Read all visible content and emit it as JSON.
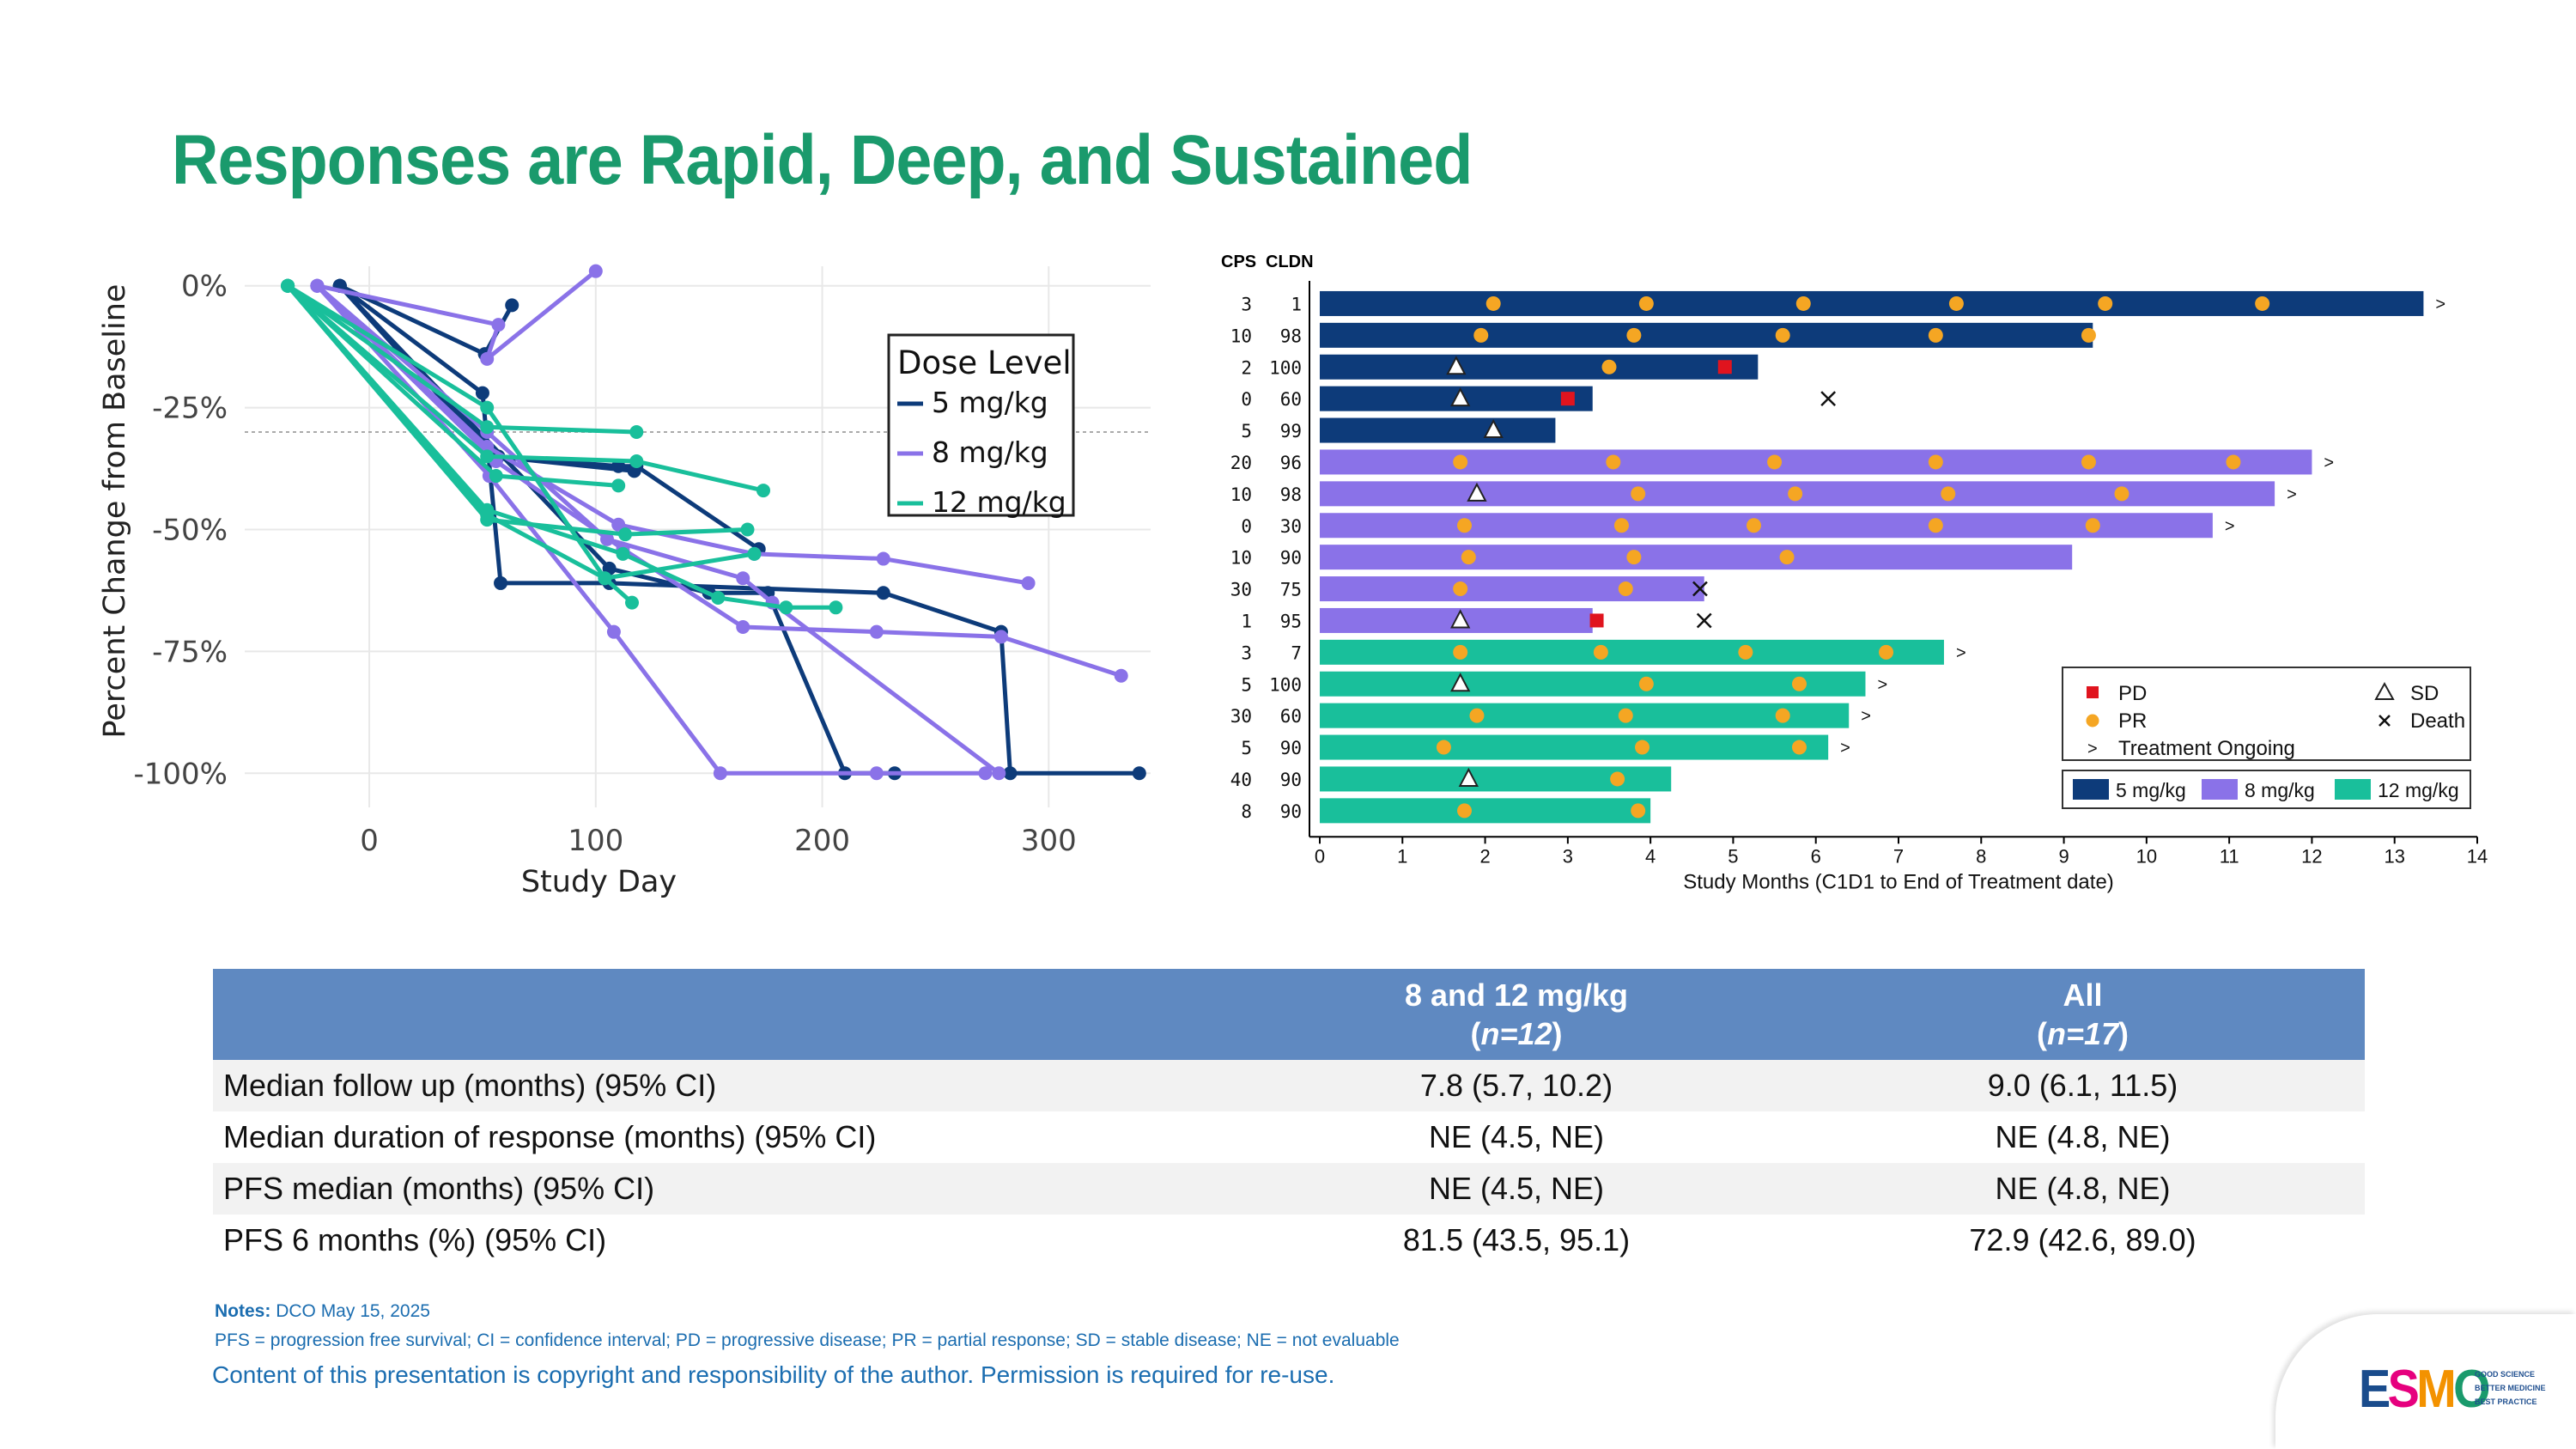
{
  "title": "Responses are Rapid, Deep, and Sustained",
  "chart_data": [
    {
      "type": "line",
      "name": "spider-plot",
      "xlabel": "Study Day",
      "ylabel": "Percent Change from Baseline",
      "xlim": [
        -55,
        345
      ],
      "ylim": [
        -107,
        4
      ],
      "xticks": [
        0,
        100,
        200,
        300
      ],
      "xtick_labels": [
        "0",
        "100",
        "200",
        "300"
      ],
      "yticks": [
        0,
        -25,
        -50,
        -75,
        -100
      ],
      "ytick_labels": [
        "0%",
        "-25%",
        "-50%",
        "-75%",
        "-100%"
      ],
      "reference_line": -30,
      "grid": true,
      "legend": {
        "title": "Dose Level",
        "position": "top-right",
        "entries": [
          {
            "label": "5 mg/kg",
            "color": "#0d3b7a"
          },
          {
            "label": "8 mg/kg",
            "color": "#8a72e8"
          },
          {
            "label": "12 mg/kg",
            "color": "#19bf9b"
          }
        ]
      },
      "series": [
        {
          "dose": "5 mg/kg",
          "points": [
            [
              -13,
              0
            ],
            [
              51,
              -14
            ],
            [
              63,
              -4
            ]
          ]
        },
        {
          "dose": "5 mg/kg",
          "points": [
            [
              -13,
              0
            ],
            [
              50,
              -22
            ],
            [
              58,
              -61
            ],
            [
              106,
              -61
            ],
            [
              227,
              -63
            ],
            [
              279,
              -71
            ],
            [
              283,
              -100
            ],
            [
              340,
              -100
            ]
          ]
        },
        {
          "dose": "5 mg/kg",
          "points": [
            [
              -13,
              0
            ],
            [
              55,
              -35
            ],
            [
              117,
              -38
            ]
          ]
        },
        {
          "dose": "5 mg/kg",
          "points": [
            [
              -13,
              0
            ],
            [
              106,
              -58
            ],
            [
              150,
              -63
            ],
            [
              176,
              -63
            ],
            [
              210,
              -100
            ],
            [
              232,
              -100
            ]
          ]
        },
        {
          "dose": "5 mg/kg",
          "points": [
            [
              -13,
              0
            ],
            [
              57,
              -35
            ],
            [
              110,
              -37
            ],
            [
              118,
              -37
            ],
            [
              172,
              -54
            ]
          ]
        },
        {
          "dose": "8 mg/kg",
          "points": [
            [
              -23,
              0
            ],
            [
              57,
              -8
            ],
            [
              52,
              -15
            ],
            [
              100,
              3
            ]
          ]
        },
        {
          "dose": "8 mg/kg",
          "points": [
            [
              -23,
              0
            ],
            [
              52,
              -33
            ],
            [
              110,
              -49
            ],
            [
              170,
              -55
            ],
            [
              227,
              -56
            ],
            [
              291,
              -61
            ]
          ]
        },
        {
          "dose": "8 mg/kg",
          "points": [
            [
              -23,
              0
            ],
            [
              53,
              -39
            ],
            [
              108,
              -71
            ],
            [
              155,
              -100
            ],
            [
              224,
              -100
            ],
            [
              272,
              -100
            ]
          ]
        },
        {
          "dose": "8 mg/kg",
          "points": [
            [
              -23,
              0
            ],
            [
              56,
              -36
            ],
            [
              112,
              -54
            ],
            [
              165,
              -70
            ],
            [
              224,
              -71
            ],
            [
              279,
              -72
            ],
            [
              332,
              -80
            ]
          ]
        },
        {
          "dose": "8 mg/kg",
          "points": [
            [
              -23,
              0
            ],
            [
              52,
              -30
            ],
            [
              105,
              -52
            ],
            [
              165,
              -60
            ],
            [
              178,
              -65
            ],
            [
              278,
              -100
            ]
          ]
        },
        {
          "dose": "12 mg/kg",
          "points": [
            [
              -36,
              0
            ],
            [
              52,
              -29
            ],
            [
              118,
              -30
            ]
          ]
        },
        {
          "dose": "12 mg/kg",
          "points": [
            [
              -36,
              0
            ],
            [
              52,
              -46
            ],
            [
              112,
              -55
            ],
            [
              154,
              -64
            ],
            [
              184,
              -66
            ],
            [
              206,
              -66
            ]
          ]
        },
        {
          "dose": "12 mg/kg",
          "points": [
            [
              -36,
              0
            ],
            [
              52,
              -35
            ],
            [
              118,
              -36
            ],
            [
              174,
              -42
            ]
          ]
        },
        {
          "dose": "12 mg/kg",
          "points": [
            [
              -36,
              0
            ],
            [
              52,
              -48
            ],
            [
              113,
              -51
            ],
            [
              167,
              -50
            ]
          ]
        },
        {
          "dose": "12 mg/kg",
          "points": [
            [
              -36,
              0
            ],
            [
              56,
              -39
            ],
            [
              110,
              -41
            ]
          ]
        },
        {
          "dose": "12 mg/kg",
          "points": [
            [
              -36,
              0
            ],
            [
              52,
              -25
            ],
            [
              104,
              -60
            ],
            [
              116,
              -65
            ]
          ]
        },
        {
          "dose": "12 mg/kg",
          "points": [
            [
              -36,
              0
            ],
            [
              52,
              -47
            ],
            [
              104,
              -60
            ],
            [
              170,
              -55
            ]
          ]
        }
      ]
    },
    {
      "type": "swimmer",
      "name": "swimmer-plot",
      "xlabel": "Study Months (C1D1 to End of Treatment date)",
      "xlim": [
        0,
        14
      ],
      "xticks": [
        0,
        1,
        2,
        3,
        4,
        5,
        6,
        7,
        8,
        9,
        10,
        11,
        12,
        13,
        14
      ],
      "xtick_labels": [
        "0",
        "1",
        "2",
        "3",
        "4",
        "5",
        "6",
        "7",
        "8",
        "9",
        "10",
        "11",
        "12",
        "13",
        "14"
      ],
      "column_headers": [
        "CPS",
        "CLDN"
      ],
      "legend_markers": [
        {
          "label": "PD",
          "marker": "square",
          "color": "#e0141e"
        },
        {
          "label": "SD",
          "marker": "triangle",
          "color": "#ffffff"
        },
        {
          "label": "PR",
          "marker": "circle",
          "color": "#f5a623"
        },
        {
          "label": "Death",
          "marker": "x",
          "color": "#000000"
        },
        {
          "label": "Treatment Ongoing",
          "marker": ">",
          "color": "#000000"
        }
      ],
      "legend_doses": [
        {
          "label": "5 mg/kg",
          "color": "#0d3b7a"
        },
        {
          "label": "8 mg/kg",
          "color": "#8a72e8"
        },
        {
          "label": "12 mg/kg",
          "color": "#19bf9b"
        }
      ],
      "patients": [
        {
          "cps": "3",
          "cldn": "1",
          "dose": "5 mg/kg",
          "end": 13.35,
          "pr": [
            2.1,
            3.95,
            5.85,
            7.7,
            9.5,
            11.4
          ],
          "sd": [],
          "pd": null,
          "death": null,
          "ongoing": true
        },
        {
          "cps": "10",
          "cldn": "98",
          "dose": "5 mg/kg",
          "end": 9.35,
          "pr": [
            1.95,
            3.8,
            5.6,
            7.45,
            9.3
          ],
          "sd": [],
          "pd": null,
          "death": null,
          "ongoing": false
        },
        {
          "cps": "2",
          "cldn": "100",
          "dose": "5 mg/kg",
          "end": 5.3,
          "pr": [
            3.5
          ],
          "sd": [
            1.65
          ],
          "pd": 4.9,
          "death": null,
          "ongoing": false
        },
        {
          "cps": "0",
          "cldn": "60",
          "dose": "5 mg/kg",
          "end": 3.3,
          "pr": [],
          "sd": [
            1.7
          ],
          "pd": 3.0,
          "death": 6.15,
          "ongoing": false
        },
        {
          "cps": "5",
          "cldn": "99",
          "dose": "5 mg/kg",
          "end": 2.85,
          "pr": [],
          "sd": [
            2.1
          ],
          "pd": null,
          "death": null,
          "ongoing": false
        },
        {
          "cps": "20",
          "cldn": "96",
          "dose": "8 mg/kg",
          "end": 12.0,
          "pr": [
            1.7,
            3.55,
            5.5,
            7.45,
            9.3,
            11.05
          ],
          "sd": [],
          "pd": null,
          "death": null,
          "ongoing": true
        },
        {
          "cps": "10",
          "cldn": "98",
          "dose": "8 mg/kg",
          "end": 11.55,
          "pr": [
            3.85,
            5.75,
            7.6,
            9.7
          ],
          "sd": [
            1.9
          ],
          "pd": null,
          "death": null,
          "ongoing": true
        },
        {
          "cps": "0",
          "cldn": "30",
          "dose": "8 mg/kg",
          "end": 10.8,
          "pr": [
            1.75,
            3.65,
            5.25,
            7.45,
            9.35
          ],
          "sd": [],
          "pd": null,
          "death": null,
          "ongoing": true
        },
        {
          "cps": "10",
          "cldn": "90",
          "dose": "8 mg/kg",
          "end": 9.1,
          "pr": [
            1.8,
            3.8,
            5.65
          ],
          "sd": [],
          "pd": null,
          "death": null,
          "ongoing": false
        },
        {
          "cps": "30",
          "cldn": "75",
          "dose": "8 mg/kg",
          "end": 4.65,
          "pr": [
            1.7,
            3.7
          ],
          "sd": [],
          "pd": null,
          "death": 4.6,
          "ongoing": false
        },
        {
          "cps": "1",
          "cldn": "95",
          "dose": "8 mg/kg",
          "end": 3.3,
          "pr": [],
          "sd": [
            1.7
          ],
          "pd": 3.35,
          "death": 4.65,
          "ongoing": false
        },
        {
          "cps": "3",
          "cldn": "7",
          "dose": "12 mg/kg",
          "end": 7.55,
          "pr": [
            1.7,
            3.4,
            5.15,
            6.85
          ],
          "sd": [],
          "pd": null,
          "death": null,
          "ongoing": true
        },
        {
          "cps": "5",
          "cldn": "100",
          "dose": "12 mg/kg",
          "end": 6.6,
          "pr": [
            3.95,
            5.8
          ],
          "sd": [
            1.7
          ],
          "pd": null,
          "death": null,
          "ongoing": true
        },
        {
          "cps": "30",
          "cldn": "60",
          "dose": "12 mg/kg",
          "end": 6.4,
          "pr": [
            1.9,
            3.7,
            5.6
          ],
          "sd": [],
          "pd": null,
          "death": null,
          "ongoing": true
        },
        {
          "cps": "5",
          "cldn": "90",
          "dose": "12 mg/kg",
          "end": 6.15,
          "pr": [
            1.5,
            3.9,
            5.8
          ],
          "sd": [],
          "pd": null,
          "death": null,
          "ongoing": true
        },
        {
          "cps": "40",
          "cldn": "90",
          "dose": "12 mg/kg",
          "end": 4.25,
          "pr": [
            3.6
          ],
          "sd": [
            1.8
          ],
          "pd": null,
          "death": null,
          "ongoing": false
        },
        {
          "cps": "8",
          "cldn": "90",
          "dose": "12 mg/kg",
          "end": 4.0,
          "pr": [
            1.75,
            3.85
          ],
          "sd": [],
          "pd": null,
          "death": null,
          "ongoing": false
        }
      ]
    }
  ],
  "table": {
    "col1_line1": "8 and 12 mg/kg",
    "col1_n": "n=12",
    "col2_line1": "All",
    "col2_n": "n=17",
    "rows": [
      {
        "label": "Median follow up (months) (95% CI)",
        "a": "7.8 (5.7, 10.2)",
        "b": "9.0 (6.1, 11.5)"
      },
      {
        "label": "Median duration of response (months) (95% CI)",
        "a": "NE (4.5, NE)",
        "b": "NE (4.8, NE)"
      },
      {
        "label": "PFS median (months) (95% CI)",
        "a": "NE (4.5, NE)",
        "b": "NE (4.8, NE)"
      },
      {
        "label": "PFS 6 months (%) (95% CI)",
        "a": "81.5 (43.5, 95.1)",
        "b": "72.9 (42.6, 89.0)"
      }
    ]
  },
  "notes": {
    "label": "Notes:",
    "dco": "DCO May 15, 2025",
    "abbrev": "PFS = progression free survival; CI = confidence interval; PD = progressive disease; PR = partial response; SD = stable disease; NE = not evaluable"
  },
  "copyright": "Content of this presentation is copyright and responsibility of the author. Permission is required for re-use.",
  "logo": {
    "text": "ESMO",
    "letter_colors": [
      "#1a4c8c",
      "#e6007e",
      "#f39200",
      "#1a9a6c"
    ],
    "tagline": [
      "GOOD SCIENCE",
      "BETTER MEDICINE",
      "BEST PRACTICE"
    ]
  }
}
